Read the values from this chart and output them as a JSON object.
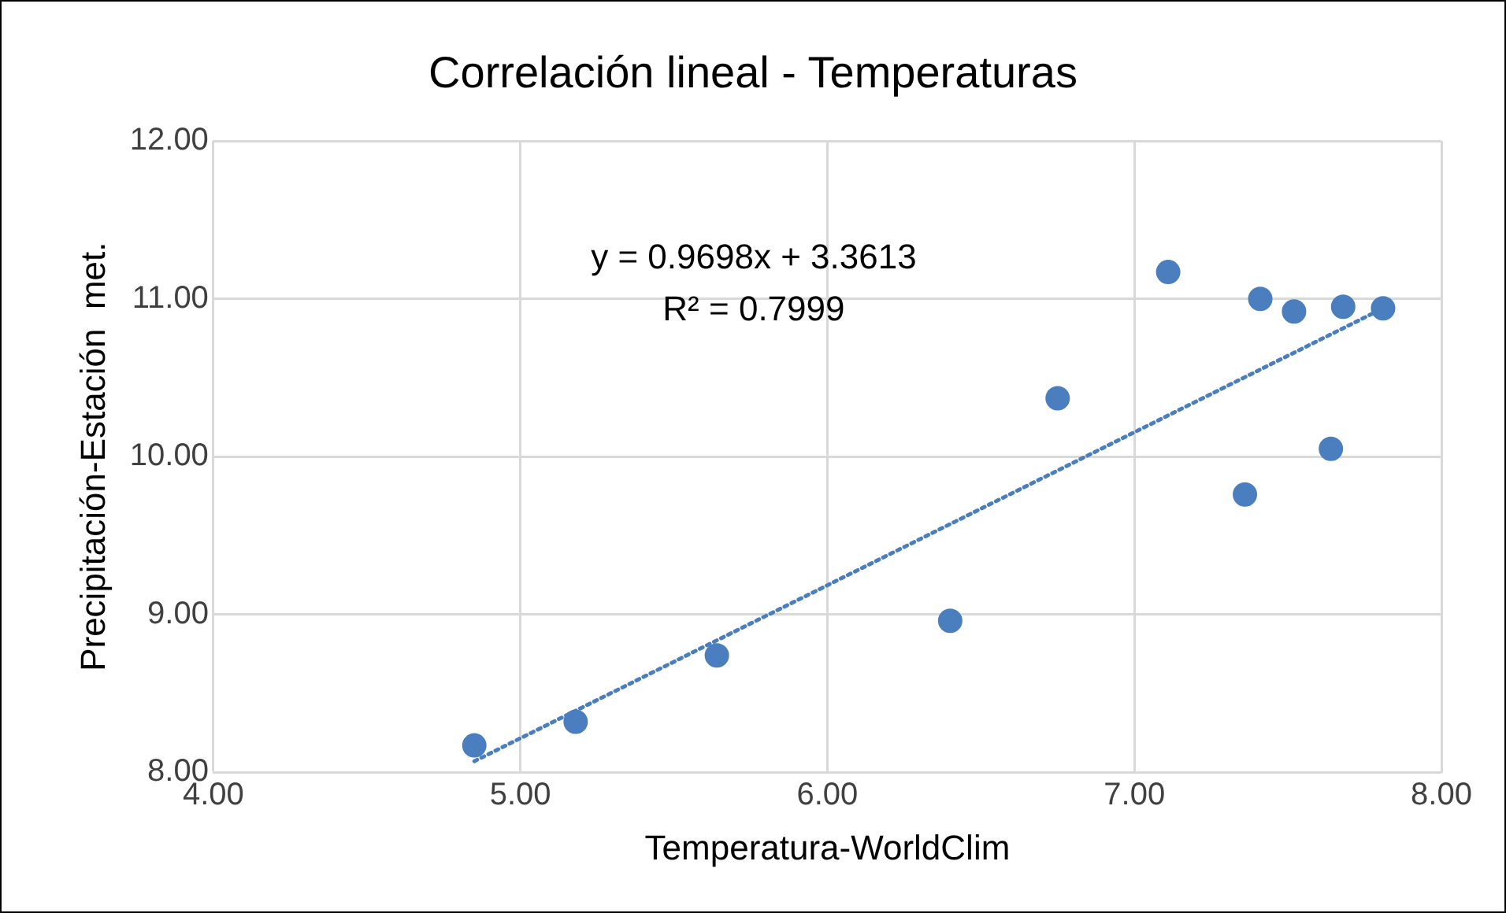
{
  "chart_data": {
    "type": "scatter",
    "title": "Correlación lineal - Temperaturas",
    "xlabel": "Temperatura-WorldClim",
    "ylabel": "Precipitación-Estación  met.",
    "xlim": [
      4,
      8
    ],
    "xticks": [
      {
        "value": 4,
        "label": "4.00"
      },
      {
        "value": 5,
        "label": "5.00"
      },
      {
        "value": 6,
        "label": "6.00"
      },
      {
        "value": 7,
        "label": "7.00"
      },
      {
        "value": 8,
        "label": "8.00"
      }
    ],
    "ylim": [
      8,
      12
    ],
    "yticks": [
      {
        "value": 8,
        "label": "8.00"
      },
      {
        "value": 9,
        "label": "9.00"
      },
      {
        "value": 10,
        "label": "10.00"
      },
      {
        "value": 11,
        "label": "11.00"
      },
      {
        "value": 12,
        "label": "12.00"
      }
    ],
    "grid": true,
    "legend": false,
    "marker": "circle",
    "series": [
      {
        "type": "scatter",
        "color": "#4a7ebf",
        "x": [
          4.85,
          5.18,
          5.64,
          6.4,
          6.75,
          7.11,
          7.36,
          7.41,
          7.52,
          7.64,
          7.68,
          7.81
        ],
        "values": [
          8.17,
          8.32,
          8.74,
          8.96,
          10.37,
          11.17,
          9.76,
          11.0,
          10.92,
          10.05,
          10.95,
          10.94
        ]
      },
      {
        "type": "line",
        "color": "#4a7ebf",
        "line_style": "dotted",
        "marker": "none",
        "x": [
          4.85,
          7.81
        ],
        "values": [
          8.07,
          10.94
        ]
      }
    ],
    "annotations": [
      "y = 0.9698x + 3.3613",
      "R² = 0.7999"
    ]
  }
}
